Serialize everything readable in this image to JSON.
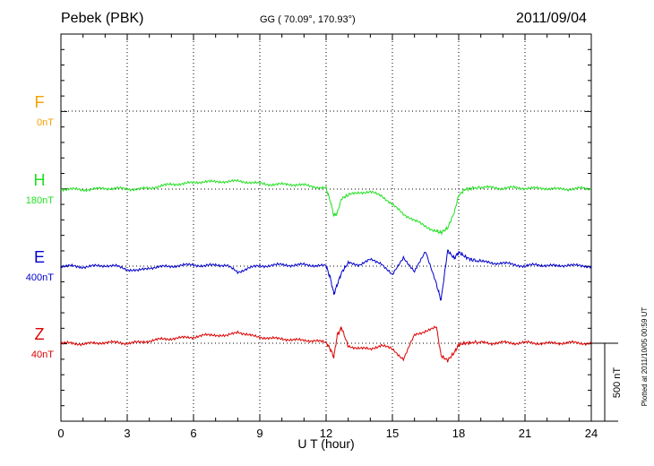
{
  "header": {
    "station": "Pebek (PBK)",
    "coords": "GG ( 70.09°, 170.93°)",
    "date": "2011/09/04"
  },
  "footer": {
    "plotted": "Plotted at 2011/10/05 00:59 UT"
  },
  "chart_data": {
    "type": "line",
    "title": "Pebek (PBK)",
    "xlabel": "U T (hour)",
    "ylabel": "",
    "xlim": [
      0,
      24
    ],
    "x_ticks": [
      "0",
      "3",
      "6",
      "9",
      "12",
      "15",
      "18",
      "21",
      "24"
    ],
    "grid": true,
    "scale_bar": {
      "label": "500 nT",
      "value_nT": 500
    },
    "series": [
      {
        "name": "F",
        "baseline_label": "0nT",
        "color": "#f5a000",
        "x": [],
        "values": []
      },
      {
        "name": "H",
        "baseline_label": "180nT",
        "color": "#22e022",
        "x": [
          0,
          0.5,
          1,
          1.5,
          2,
          2.5,
          3,
          3.5,
          4,
          4.5,
          5,
          5.5,
          6,
          6.5,
          7,
          7.5,
          8,
          8.5,
          9,
          9.5,
          10,
          10.5,
          11,
          11.5,
          12,
          12.2,
          12.35,
          12.5,
          12.7,
          13,
          13.5,
          14,
          14.5,
          15,
          15.5,
          16,
          16.5,
          17,
          17.2,
          17.5,
          17.8,
          18,
          18.3,
          18.6,
          19,
          19.5,
          20,
          20.5,
          21,
          21.5,
          22,
          22.5,
          23,
          23.5,
          24
        ],
        "values": [
          0,
          0,
          -5,
          0,
          5,
          5,
          0,
          0,
          5,
          20,
          30,
          35,
          40,
          50,
          45,
          50,
          50,
          45,
          35,
          30,
          30,
          30,
          25,
          15,
          5,
          -80,
          -170,
          -155,
          -60,
          -40,
          -20,
          -20,
          -40,
          -100,
          -160,
          -200,
          -240,
          -270,
          -280,
          -250,
          -150,
          -40,
          0,
          5,
          10,
          10,
          5,
          10,
          5,
          5,
          5,
          0,
          0,
          5,
          0
        ]
      },
      {
        "name": "E",
        "baseline_label": "400nT",
        "color": "#0000cc",
        "x": [
          0,
          0.5,
          1,
          1.5,
          2,
          2.5,
          3,
          3.5,
          4,
          4.5,
          5,
          5.5,
          6,
          6.5,
          7,
          7.5,
          8,
          8.5,
          9,
          9.5,
          10,
          10.5,
          11,
          11.5,
          12,
          12.2,
          12.35,
          12.5,
          12.7,
          13,
          13.5,
          14,
          14.5,
          15,
          15.5,
          16,
          16.5,
          17,
          17.2,
          17.5,
          17.8,
          18,
          18.3,
          18.6,
          19,
          19.5,
          20,
          20.5,
          21,
          21.5,
          22,
          22.5,
          23,
          23.5,
          24
        ],
        "values": [
          0,
          0,
          -5,
          0,
          5,
          0,
          -20,
          -30,
          -10,
          -5,
          0,
          5,
          10,
          0,
          10,
          5,
          -40,
          -10,
          0,
          5,
          10,
          5,
          10,
          5,
          0,
          -80,
          -180,
          -120,
          -40,
          20,
          10,
          40,
          20,
          -60,
          60,
          -40,
          100,
          -120,
          -220,
          100,
          50,
          90,
          60,
          40,
          30,
          20,
          20,
          10,
          0,
          10,
          5,
          0,
          10,
          0,
          0
        ]
      },
      {
        "name": "Z",
        "baseline_label": "40nT",
        "color": "#dd0000",
        "x": [
          0,
          0.5,
          1,
          1.5,
          2,
          2.5,
          3,
          3.5,
          4,
          4.5,
          5,
          5.5,
          6,
          6.5,
          7,
          7.5,
          8,
          8.5,
          9,
          9.5,
          10,
          10.5,
          11,
          11.5,
          12,
          12.2,
          12.35,
          12.5,
          12.7,
          13,
          13.5,
          14,
          14.5,
          15,
          15.5,
          16,
          16.5,
          17,
          17.2,
          17.5,
          17.8,
          18,
          18.3,
          18.6,
          19,
          19.5,
          20,
          20.5,
          21,
          21.5,
          22,
          22.5,
          23,
          23.5,
          24
        ],
        "values": [
          0,
          0,
          -5,
          0,
          5,
          5,
          0,
          5,
          15,
          25,
          30,
          35,
          40,
          50,
          55,
          45,
          75,
          50,
          40,
          30,
          30,
          20,
          20,
          15,
          5,
          -40,
          -90,
          50,
          100,
          -20,
          -30,
          -40,
          -10,
          -40,
          -100,
          50,
          80,
          100,
          -80,
          -110,
          -60,
          -10,
          0,
          5,
          5,
          0,
          5,
          0,
          5,
          0,
          0,
          0,
          5,
          0,
          0
        ]
      }
    ]
  }
}
